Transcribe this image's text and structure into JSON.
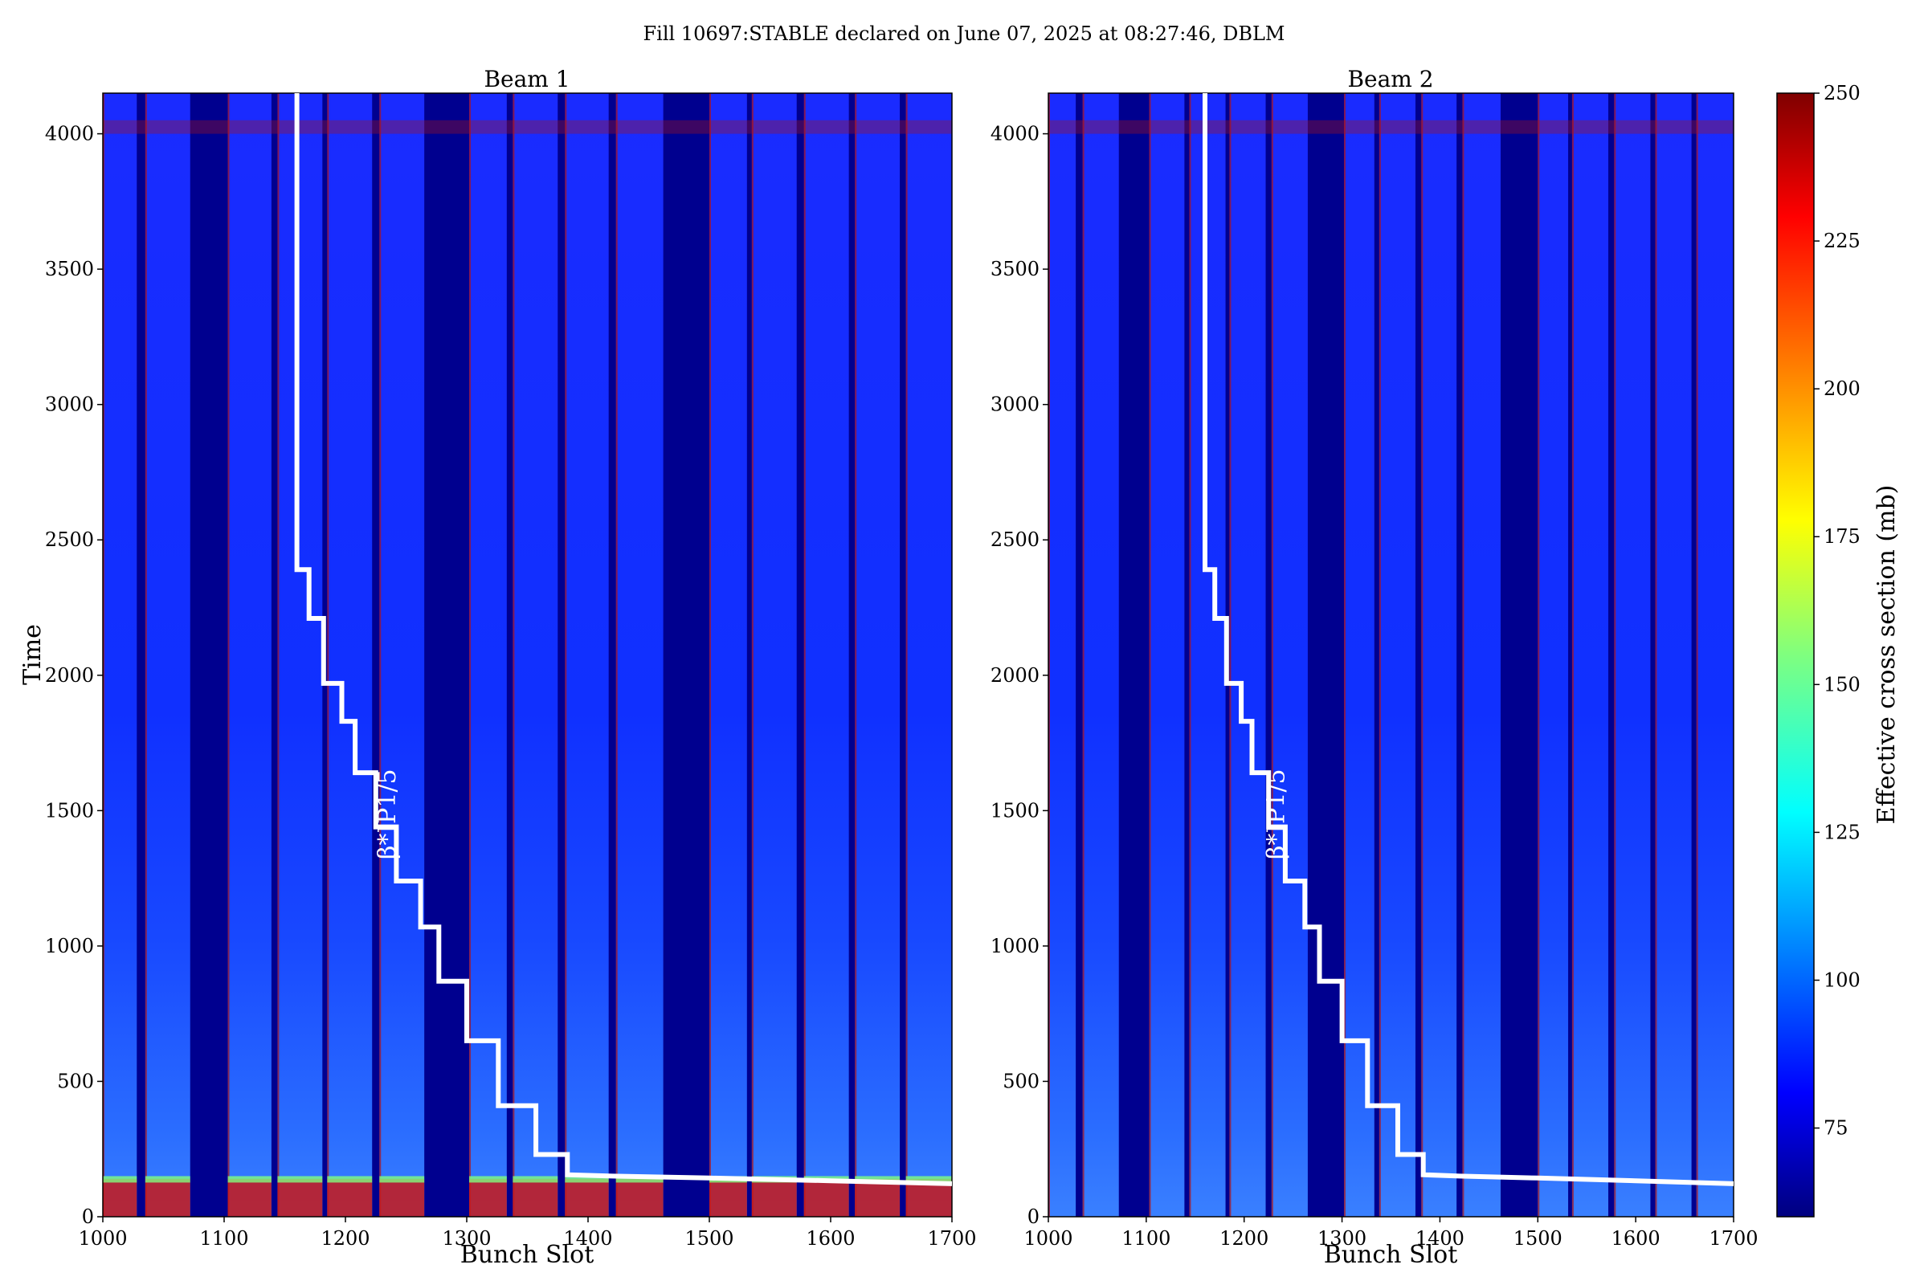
{
  "figure_title": "Fill 10697:STABLE declared on June 07, 2025 at 08:27:46, DBLM",
  "colorbar": {
    "label": "Effective cross section (mb)",
    "ticks": [
      75,
      100,
      125,
      150,
      175,
      200,
      225,
      250
    ],
    "range": [
      60,
      250
    ],
    "colormap": "jet"
  },
  "chart_data": [
    {
      "type": "heatmap",
      "title": "Beam 1",
      "xlabel": "Bunch Slot",
      "ylabel": "Time",
      "xlim": [
        1000,
        1700
      ],
      "ylim": [
        0,
        4150
      ],
      "xticks": [
        1000,
        1100,
        1200,
        1300,
        1400,
        1500,
        1600,
        1700
      ],
      "yticks": [
        0,
        500,
        1000,
        1500,
        2000,
        2500,
        3000,
        3500,
        4000
      ],
      "filled_trains": [
        [
          1000,
          1028
        ],
        [
          1035,
          1072
        ],
        [
          1103,
          1139
        ],
        [
          1144,
          1181
        ],
        [
          1185,
          1222
        ],
        [
          1228,
          1265
        ],
        [
          1302,
          1333
        ],
        [
          1338,
          1375
        ],
        [
          1381,
          1417
        ],
        [
          1423,
          1462
        ],
        [
          1500,
          1531
        ],
        [
          1535,
          1572
        ],
        [
          1578,
          1615
        ],
        [
          1620,
          1657
        ],
        [
          1662,
          1700
        ]
      ],
      "typical_value_mb": 80,
      "line_label": "β*IP1/5",
      "beta_star_steps": [
        [
          1160,
          4150
        ],
        [
          1160,
          2390
        ],
        [
          1170,
          2390
        ],
        [
          1170,
          2210
        ],
        [
          1182,
          2210
        ],
        [
          1182,
          1970
        ],
        [
          1197,
          1970
        ],
        [
          1197,
          1830
        ],
        [
          1208,
          1830
        ],
        [
          1208,
          1640
        ],
        [
          1225,
          1640
        ],
        [
          1225,
          1440
        ],
        [
          1242,
          1440
        ],
        [
          1242,
          1240
        ],
        [
          1262,
          1240
        ],
        [
          1262,
          1070
        ],
        [
          1277,
          1070
        ],
        [
          1277,
          870
        ],
        [
          1300,
          870
        ],
        [
          1300,
          650
        ],
        [
          1326,
          650
        ],
        [
          1326,
          410
        ],
        [
          1357,
          410
        ],
        [
          1357,
          230
        ],
        [
          1383,
          230
        ],
        [
          1383,
          155
        ],
        [
          1420,
          150
        ],
        [
          1500,
          143
        ],
        [
          1600,
          133
        ],
        [
          1700,
          122
        ]
      ]
    },
    {
      "type": "heatmap",
      "title": "Beam 2",
      "xlabel": "Bunch Slot",
      "ylabel": "",
      "xlim": [
        1000,
        1700
      ],
      "ylim": [
        0,
        4150
      ],
      "xticks": [
        1000,
        1100,
        1200,
        1300,
        1400,
        1500,
        1600,
        1700
      ],
      "yticks": [
        0,
        500,
        1000,
        1500,
        2000,
        2500,
        3000,
        3500,
        4000
      ],
      "filled_trains": [
        [
          1000,
          1028
        ],
        [
          1035,
          1072
        ],
        [
          1103,
          1139
        ],
        [
          1144,
          1181
        ],
        [
          1185,
          1222
        ],
        [
          1228,
          1265
        ],
        [
          1302,
          1333
        ],
        [
          1338,
          1375
        ],
        [
          1381,
          1417
        ],
        [
          1423,
          1462
        ],
        [
          1500,
          1531
        ],
        [
          1535,
          1572
        ],
        [
          1578,
          1615
        ],
        [
          1620,
          1657
        ],
        [
          1662,
          1700
        ]
      ],
      "typical_value_mb": 80,
      "line_label": "β*IP1/5",
      "beta_star_steps": [
        [
          1160,
          4150
        ],
        [
          1160,
          2390
        ],
        [
          1170,
          2390
        ],
        [
          1170,
          2210
        ],
        [
          1182,
          2210
        ],
        [
          1182,
          1970
        ],
        [
          1197,
          1970
        ],
        [
          1197,
          1830
        ],
        [
          1208,
          1830
        ],
        [
          1208,
          1640
        ],
        [
          1225,
          1640
        ],
        [
          1225,
          1440
        ],
        [
          1242,
          1440
        ],
        [
          1242,
          1240
        ],
        [
          1262,
          1240
        ],
        [
          1262,
          1070
        ],
        [
          1277,
          1070
        ],
        [
          1277,
          870
        ],
        [
          1300,
          870
        ],
        [
          1300,
          650
        ],
        [
          1326,
          650
        ],
        [
          1326,
          410
        ],
        [
          1357,
          410
        ],
        [
          1357,
          230
        ],
        [
          1383,
          230
        ],
        [
          1383,
          155
        ],
        [
          1420,
          150
        ],
        [
          1500,
          143
        ],
        [
          1600,
          133
        ],
        [
          1700,
          122
        ]
      ]
    }
  ]
}
